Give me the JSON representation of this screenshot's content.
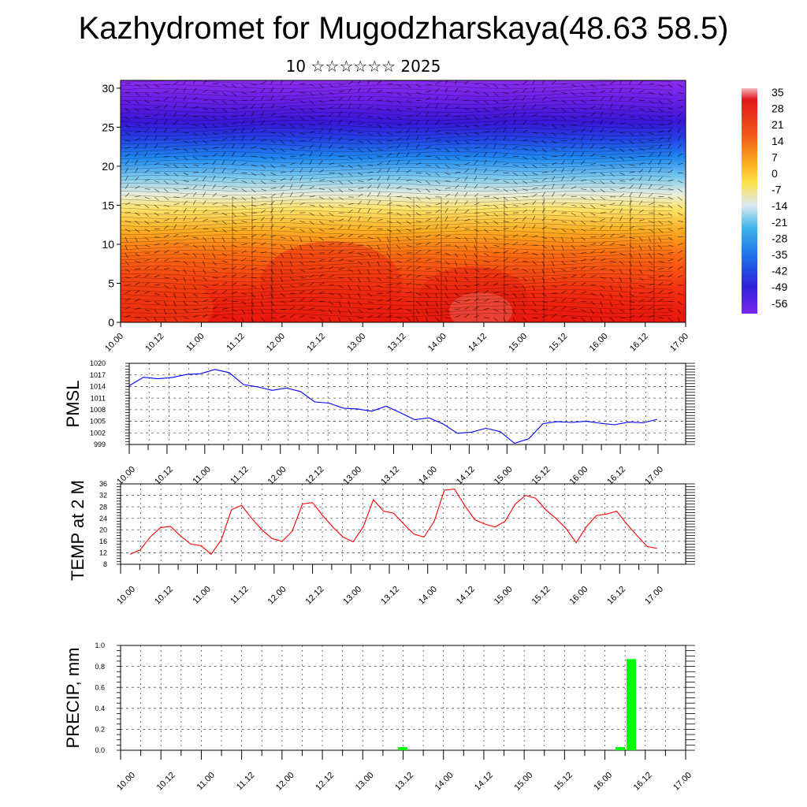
{
  "title": "Kazhydromet for Mugodzharskaya(48.63 58.5)",
  "subtitle": "10 ☆☆☆☆☆☆ 2025",
  "x_ticks": [
    "10.00",
    "10.12",
    "11.00",
    "11.12",
    "12.00",
    "12.12",
    "13.00",
    "13.12",
    "14.00",
    "14.12",
    "15.00",
    "15.12",
    "16.00",
    "16.12",
    "17.00"
  ],
  "colors": {
    "pmsl_line": "#0000ff",
    "temp_line": "#ff0000",
    "precip_bar": "#00ff00",
    "frame": "#000000"
  },
  "chart_data": [
    {
      "type": "heatmap",
      "title": "",
      "xlabel": "",
      "ylabel": "",
      "description_fill": "temperature by height with wind barbs",
      "ylim": [
        0,
        31
      ],
      "yticks": [
        0,
        5,
        10,
        15,
        20,
        25,
        30
      ],
      "x": [
        "10.00",
        "10.12",
        "11.00",
        "11.12",
        "12.00",
        "12.12",
        "13.00",
        "13.12",
        "14.00",
        "14.12",
        "15.00",
        "15.12",
        "16.00",
        "16.12",
        "17.00"
      ],
      "colorbar_labels": [
        "35",
        "28",
        "21",
        "14",
        "7",
        "0",
        "-7",
        "-14",
        "-21",
        "-28",
        "-35",
        "-42",
        "-49",
        "-56"
      ],
      "colorbar_range": [
        -60,
        38
      ]
    },
    {
      "type": "line",
      "ylabel": "PMSL",
      "ylim": [
        999,
        1020
      ],
      "yticks": [
        999,
        1002,
        1005,
        1008,
        1011,
        1014,
        1017,
        1020
      ],
      "series": [
        {
          "values": [
            1014.2,
            1016.4,
            1016.0,
            1016.3,
            1017.1,
            1017.3,
            1018.4,
            1017.6,
            1014.5,
            1013.9,
            1013.0,
            1013.6,
            1012.7,
            1010.0,
            1009.7,
            1008.4,
            1008.2,
            1007.6,
            1008.9,
            1007.2,
            1005.4,
            1005.9,
            1004.3,
            1001.9,
            1002.2,
            1003.2,
            1002.3,
            999.3,
            1000.5,
            1004.4,
            1004.9,
            1004.7,
            1005.0,
            1004.5,
            1004.1,
            1004.8,
            1004.6,
            1005.5
          ]
        }
      ],
      "x_start": 0,
      "x_step_hours": 3
    },
    {
      "type": "line",
      "ylabel": "TEMP at 2 M",
      "ylim": [
        8,
        36
      ],
      "yticks": [
        8,
        12,
        16,
        20,
        24,
        28,
        32,
        36
      ],
      "series": [
        {
          "values": [
            11.5,
            13.0,
            17.5,
            20.8,
            21.2,
            17.8,
            15.0,
            14.5,
            11.5,
            16.5,
            27.0,
            28.5,
            24.0,
            20.0,
            17.0,
            16.0,
            19.5,
            29.0,
            29.5,
            25.0,
            21.0,
            17.5,
            15.8,
            21.0,
            30.5,
            26.5,
            25.8,
            22.0,
            18.5,
            17.5,
            23.0,
            33.8,
            34.2,
            28.5,
            23.5,
            22.0,
            21.0,
            23.0,
            29.0,
            32.0,
            31.0,
            27.0,
            24.0,
            20.5,
            15.5,
            21.0,
            25.0,
            25.5,
            26.5,
            22.0,
            18.0,
            14.2,
            13.5
          ]
        }
      ],
      "x_step_hours": 3
    },
    {
      "type": "bar",
      "ylabel": "PRECIP, mm",
      "ylim": [
        0,
        1.0
      ],
      "yticks": [
        "0.0",
        "0.2",
        "0.4",
        "0.6",
        "0.8",
        "1.0"
      ],
      "bars": [
        {
          "x": "13.12",
          "value": 0.03
        },
        {
          "x": "16.06",
          "value": 0.03
        },
        {
          "x": "16.09",
          "value": 0.87
        }
      ]
    }
  ]
}
